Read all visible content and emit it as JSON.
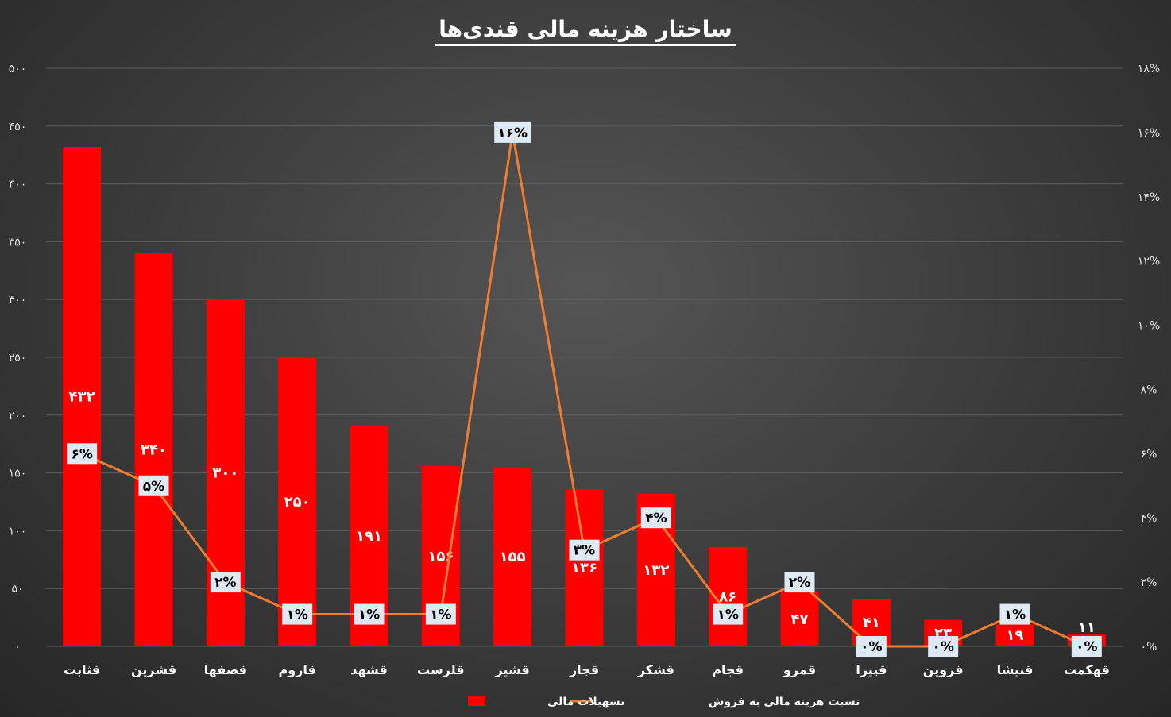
{
  "title": "ساختار هزینه مالی قندی‌ها",
  "chart_data": {
    "type": "bar",
    "categories": [
      "قثابت",
      "قشرین",
      "قصفها",
      "قاروم",
      "قشهد",
      "قلرست",
      "قشیر",
      "قچار",
      "قشکر",
      "قجام",
      "قمرو",
      "قپیرا",
      "قزوین",
      "قنیشا",
      "قهکمت"
    ],
    "series": [
      {
        "name": "تسهیلات مالی",
        "type": "bar",
        "axis": "left",
        "color": "#ff0000",
        "values": [
          432,
          340,
          300,
          250,
          191,
          156,
          155,
          136,
          132,
          86,
          47,
          41,
          23,
          19,
          11
        ],
        "labels": [
          "۴۳۲",
          "۳۴۰",
          "۳۰۰",
          "۲۵۰",
          "۱۹۱",
          "۱۵۶",
          "۱۵۵",
          "۱۳۶",
          "۱۳۲",
          "۸۶",
          "۴۷",
          "۴۱",
          "۲۳",
          "۱۹",
          "۱۱"
        ]
      },
      {
        "name": "نسبت هزینه مالی به فروش",
        "type": "line",
        "axis": "right",
        "color": "#ed7d31",
        "values": [
          6,
          5,
          2,
          1,
          1,
          1,
          16,
          3,
          4,
          1,
          2,
          0,
          0,
          1,
          0
        ],
        "labels": [
          "۶%",
          "۵%",
          "۲%",
          "۱%",
          "۱%",
          "۱%",
          "۱۶%",
          "۳%",
          "۴%",
          "۱%",
          "۲%",
          "۰%",
          "۰%",
          "۱%",
          "۰%"
        ]
      }
    ],
    "ylim": [
      0,
      500
    ],
    "y2lim": [
      0,
      18
    ],
    "y_ticks": [
      "۰",
      "۵۰",
      "۱۰۰",
      "۱۵۰",
      "۲۰۰",
      "۲۵۰",
      "۳۰۰",
      "۳۵۰",
      "۴۰۰",
      "۴۵۰",
      "۵۰۰"
    ],
    "y2_ticks": [
      "۰%",
      "۲%",
      "۴%",
      "۶%",
      "۸%",
      "۱۰%",
      "۱۲%",
      "۱۴%",
      "۱۶%",
      "۱۸%"
    ],
    "grid": true,
    "legend_position": "bottom-center"
  }
}
